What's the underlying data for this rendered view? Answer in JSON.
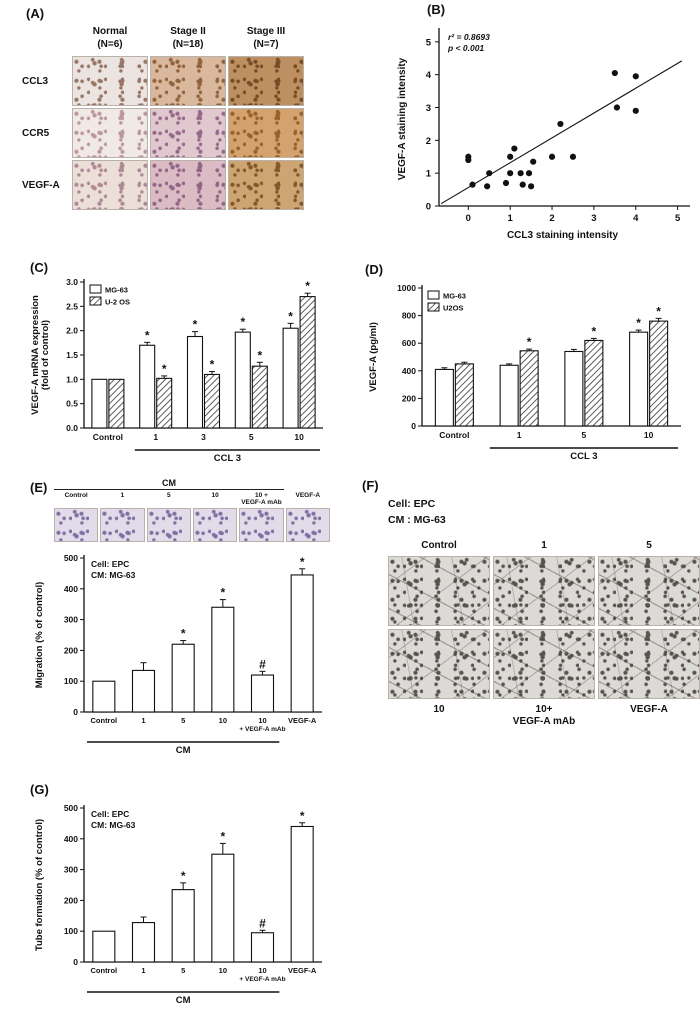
{
  "colors": {
    "ink": "#111111",
    "background": "#ffffff"
  },
  "panelA": {
    "tag": "(A)",
    "col_headers": [
      [
        "Normal",
        "(N=6)"
      ],
      [
        "Stage II",
        "(N=18)"
      ],
      [
        "Stage III",
        "(N=7)"
      ]
    ],
    "row_labels": [
      "CCL3",
      "CCR5",
      "VEGF-A"
    ],
    "cell_tones": [
      {
        "base": "#ece4e0",
        "spot": "#8d6a58"
      },
      {
        "base": "#d9b89d",
        "spot": "#8a5a33"
      },
      {
        "base": "#bd8f61",
        "spot": "#6e4520"
      },
      {
        "base": "#f0e9e5",
        "spot": "#b58f98"
      },
      {
        "base": "#e0c8ce",
        "spot": "#8f5f84"
      },
      {
        "base": "#d3a26e",
        "spot": "#935a22"
      },
      {
        "base": "#ebdfd7",
        "spot": "#a87f8d"
      },
      {
        "base": "#dcbcc4",
        "spot": "#8a5c80"
      },
      {
        "base": "#cda572",
        "spot": "#7e4c22"
      }
    ]
  },
  "panelB": {
    "tag": "(B)"
  },
  "panelC": {
    "tag": "(C)"
  },
  "panelD": {
    "tag": "(D)"
  },
  "panelE": {
    "tag": "(E)",
    "strip": {
      "bracket_label": "CM",
      "labels": [
        "Control",
        "1",
        "5",
        "10",
        "10 +|VEGF-A mAb",
        "VEGF-A"
      ],
      "tone": {
        "base": "#e2dcea",
        "spot": "#75659a"
      }
    }
  },
  "panelF": {
    "tag": "(F)",
    "note_lines": [
      "Cell: EPC",
      "CM : MG-63"
    ],
    "top_labels": [
      "Control",
      "1",
      "5"
    ],
    "bottom_labels": [
      "10",
      "10+|VEGF-A mAb",
      "VEGF-A"
    ],
    "tone": {
      "base": "#dcdad7",
      "spot": "#4a463f"
    }
  },
  "panelG": {
    "tag": "(G)"
  },
  "chart_data": [
    {
      "id": "B",
      "type": "scatter",
      "title": "",
      "xlabel": "CCL3 staining intensity",
      "ylabel": "VEGF-A staining intensity",
      "xlim": [
        -0.7,
        5.2
      ],
      "ylim": [
        0,
        5.3
      ],
      "xticks": [
        0,
        1,
        2,
        3,
        4,
        5
      ],
      "yticks": [
        0,
        1,
        2,
        3,
        4,
        5
      ],
      "annotations": [
        "r² = 0.8693",
        "p < 0.001"
      ],
      "fit_line": [
        [
          -0.65,
          0.07
        ],
        [
          5.1,
          4.42
        ]
      ],
      "points": [
        [
          0,
          1.5
        ],
        [
          0,
          1.4
        ],
        [
          0.1,
          0.65
        ],
        [
          0.45,
          0.6
        ],
        [
          0.5,
          1.0
        ],
        [
          0.9,
          0.7
        ],
        [
          1.0,
          1.0
        ],
        [
          1.0,
          1.5
        ],
        [
          1.1,
          1.75
        ],
        [
          1.25,
          1.0
        ],
        [
          1.3,
          0.65
        ],
        [
          1.45,
          1.0
        ],
        [
          1.5,
          0.6
        ],
        [
          1.55,
          1.35
        ],
        [
          2.0,
          1.5
        ],
        [
          2.2,
          2.5
        ],
        [
          2.5,
          1.5
        ],
        [
          3.5,
          4.05
        ],
        [
          3.55,
          3.0
        ],
        [
          4.0,
          3.95
        ],
        [
          4.0,
          2.9
        ]
      ]
    },
    {
      "id": "C",
      "type": "bar",
      "title": "",
      "ylabel": [
        "VEGF-A  mRNA expression",
        "(fold of control)"
      ],
      "categories": [
        "Control",
        "1",
        "3",
        "5",
        "10"
      ],
      "series": [
        {
          "name": "MG-63",
          "pattern": "open",
          "values": [
            1.0,
            1.7,
            1.88,
            1.97,
            2.05
          ],
          "errors": [
            0,
            0.06,
            0.1,
            0.06,
            0.1
          ],
          "marks": [
            "",
            "*",
            "*",
            "*",
            "*"
          ]
        },
        {
          "name": "U-2 OS",
          "pattern": "hatch",
          "values": [
            1.0,
            1.02,
            1.1,
            1.27,
            2.7
          ],
          "errors": [
            0,
            0.05,
            0.06,
            0.08,
            0.07
          ],
          "marks": [
            "",
            "*",
            "*",
            "*",
            "*"
          ]
        }
      ],
      "ylim": [
        0,
        3.0
      ],
      "yticks": [
        "0.0",
        "0.5",
        "1.0",
        "1.5",
        "2.0",
        "2.5",
        "3.0"
      ],
      "xgroup": {
        "label": "CCL 3",
        "from": 1,
        "to": 4
      },
      "legend_position": "top-left"
    },
    {
      "id": "D",
      "type": "bar",
      "title": "",
      "ylabel": [
        "VEGF-A (pg/ml)"
      ],
      "categories": [
        "Control",
        "1",
        "5",
        "10"
      ],
      "series": [
        {
          "name": "MG-63",
          "pattern": "open",
          "values": [
            410,
            440,
            540,
            680
          ],
          "errors": [
            12,
            10,
            15,
            15
          ],
          "marks": [
            "",
            "",
            "",
            "*"
          ]
        },
        {
          "name": "U2OS",
          "pattern": "hatch",
          "values": [
            450,
            545,
            620,
            760
          ],
          "errors": [
            12,
            12,
            15,
            20
          ],
          "marks": [
            "",
            "*",
            "*",
            "*"
          ]
        }
      ],
      "ylim": [
        0,
        1000
      ],
      "yticks": [
        "0",
        "200",
        "400",
        "600",
        "800",
        "1000"
      ],
      "xgroup": {
        "label": "CCL 3",
        "from": 1,
        "to": 3
      },
      "legend_position": "top-left"
    },
    {
      "id": "E",
      "type": "bar",
      "title": "",
      "inner_note": [
        "Cell: EPC",
        "CM: MG-63"
      ],
      "ylabel": [
        "Migration (% of control)"
      ],
      "categories": [
        "Control",
        "1",
        "5",
        "10",
        "10|+ VEGF-A mAb",
        "VEGF-A"
      ],
      "series": [
        {
          "name": "CM",
          "pattern": "open",
          "values": [
            100,
            135,
            220,
            340,
            120,
            445
          ],
          "errors": [
            0,
            25,
            12,
            25,
            12,
            20
          ],
          "marks": [
            "",
            "",
            "*",
            "*",
            "#",
            "*"
          ]
        }
      ],
      "ylim": [
        0,
        500
      ],
      "yticks": [
        "0",
        "100",
        "200",
        "300",
        "400",
        "500"
      ],
      "xgroup": {
        "label": "CM",
        "from": 0,
        "to": 4
      }
    },
    {
      "id": "G",
      "type": "bar",
      "title": "",
      "inner_note": [
        "Cell: EPC",
        "CM: MG-63"
      ],
      "ylabel": [
        "Tube formation (% of control)"
      ],
      "categories": [
        "Control",
        "1",
        "5",
        "10",
        "10|+ VEGF-A mAb",
        "VEGF-A"
      ],
      "series": [
        {
          "name": "CM",
          "pattern": "open",
          "values": [
            100,
            128,
            235,
            350,
            95,
            440
          ],
          "errors": [
            0,
            18,
            22,
            35,
            8,
            12
          ],
          "marks": [
            "",
            "",
            "*",
            "*",
            "#",
            "*"
          ]
        }
      ],
      "ylim": [
        0,
        500
      ],
      "yticks": [
        "0",
        "100",
        "200",
        "300",
        "400",
        "500"
      ],
      "xgroup": {
        "label": "CM",
        "from": 0,
        "to": 4
      }
    }
  ]
}
